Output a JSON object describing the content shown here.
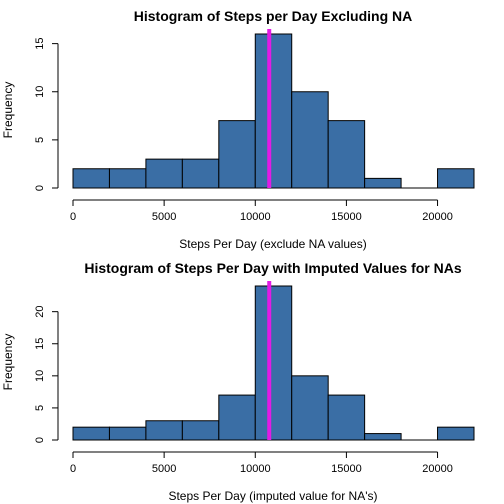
{
  "chart_data": [
    {
      "type": "bar",
      "title": "Histogram of Steps per Day Excluding NA",
      "xlabel": "Steps Per Day (exclude NA values)",
      "ylabel": "Frequency",
      "bin_edges": [
        0,
        2000,
        4000,
        6000,
        8000,
        10000,
        12000,
        14000,
        16000,
        18000,
        20000,
        22000
      ],
      "values": [
        2,
        2,
        3,
        3,
        7,
        16,
        10,
        7,
        1,
        0,
        2
      ],
      "x_ticks": [
        0,
        5000,
        10000,
        15000,
        20000
      ],
      "y_ticks": [
        0,
        5,
        10,
        15
      ],
      "xlim": [
        0,
        22000
      ],
      "ylim": [
        0,
        16
      ],
      "bar_color": "#3a6ea5",
      "reference_line": {
        "x": 10766,
        "color": "#e21be6"
      },
      "grid": false
    },
    {
      "type": "bar",
      "title": "Histogram of Steps Per Day with Imputed Values for NAs",
      "xlabel": "Steps Per Day (imputed value for NA's)",
      "ylabel": "Frequency",
      "bin_edges": [
        0,
        2000,
        4000,
        6000,
        8000,
        10000,
        12000,
        14000,
        16000,
        18000,
        20000,
        22000
      ],
      "values": [
        2,
        2,
        3,
        3,
        7,
        24,
        10,
        7,
        1,
        0,
        2
      ],
      "x_ticks": [
        0,
        5000,
        10000,
        15000,
        20000
      ],
      "y_ticks": [
        0,
        5,
        10,
        15,
        20
      ],
      "xlim": [
        0,
        22000
      ],
      "ylim": [
        0,
        24
      ],
      "bar_color": "#3a6ea5",
      "reference_line": {
        "x": 10766,
        "color": "#e21be6"
      },
      "grid": false
    }
  ]
}
